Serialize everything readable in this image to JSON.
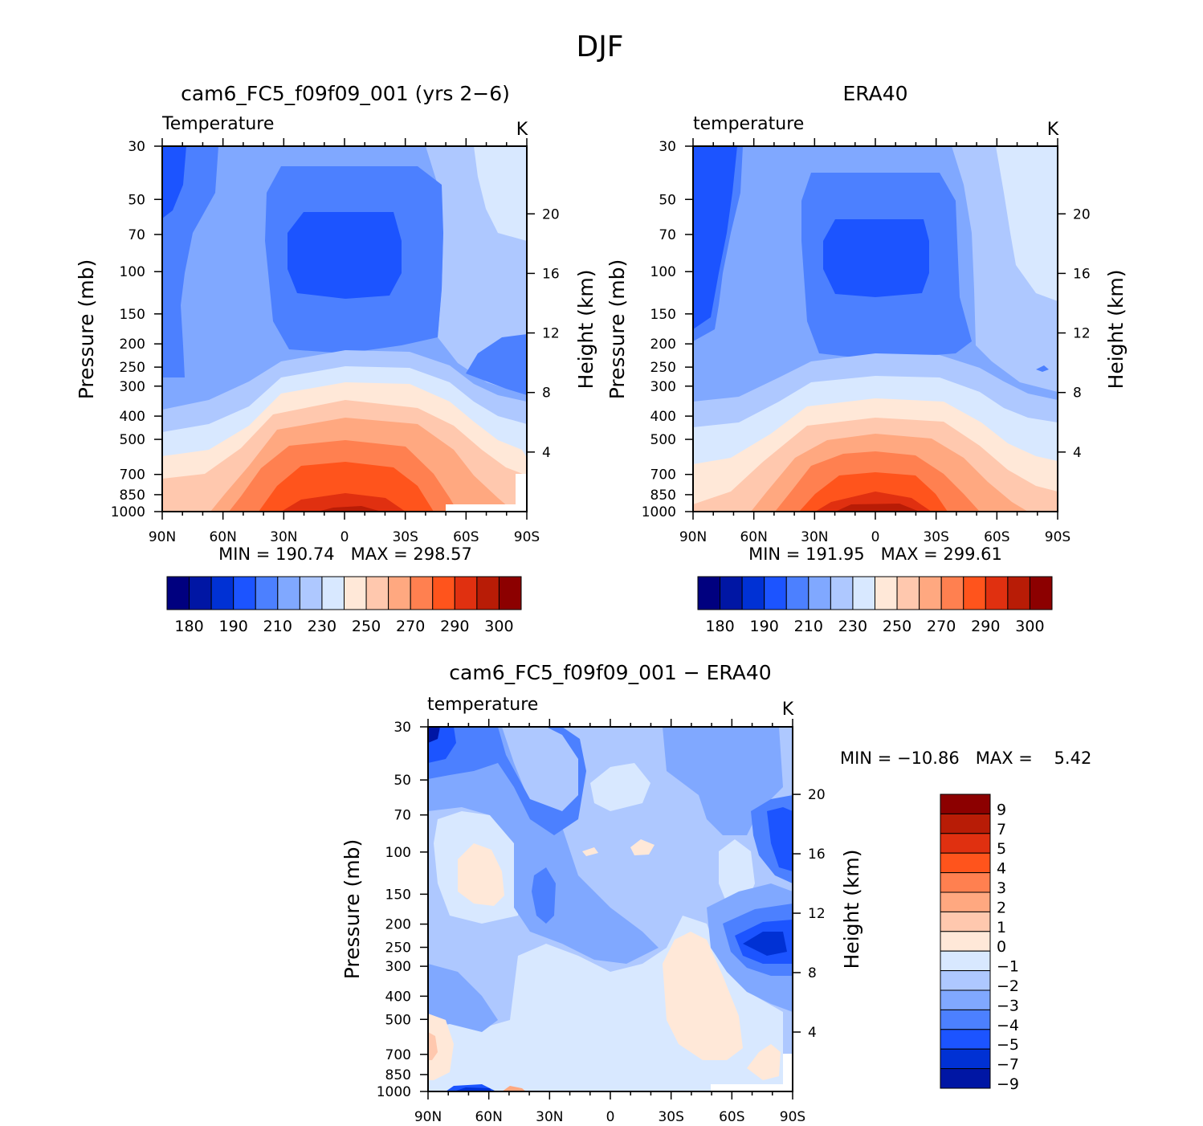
{
  "figure": {
    "title": "DJF"
  },
  "colors": {
    "abs_levels": [
      "#00007f",
      "#0016a4",
      "#0031d4",
      "#1c54ff",
      "#4c80ff",
      "#80a8ff",
      "#aec8ff",
      "#d8e8ff",
      "#ffe8d8",
      "#ffc8ae",
      "#ffa880",
      "#ff8050",
      "#ff541c",
      "#e03010",
      "#b81c06",
      "#8c0000"
    ],
    "diff_levels": [
      "#0016a4",
      "#0031d4",
      "#1c54ff",
      "#4c80ff",
      "#80a8ff",
      "#aec8ff",
      "#d8e8ff",
      "#ffe8d8",
      "#ffc8ae",
      "#ffa880",
      "#ff8050",
      "#ff541c",
      "#e03010",
      "#b81c06",
      "#8c0000"
    ]
  },
  "chart_data": [
    {
      "type": "heatmap",
      "id": "model",
      "title": "cam6_FC5_f09f09_001 (yrs 2−6)",
      "subtitle": "Temperature",
      "units": "K",
      "xlabel": "",
      "ylabel": "Pressure (mb)",
      "y2label": "Height (km)",
      "x_ticks": [
        "90N",
        "60N",
        "30N",
        "0",
        "30S",
        "60S",
        "90S"
      ],
      "y_ticks": [
        30,
        50,
        70,
        100,
        150,
        200,
        250,
        300,
        400,
        500,
        700,
        850,
        1000
      ],
      "y2_ticks": [
        20,
        16,
        12,
        8,
        4
      ],
      "stats": "MIN = 190.74   MAX = 298.57",
      "stats_min": 190.74,
      "stats_max": 298.57,
      "colorbar_labels": [
        "180",
        "190",
        "210",
        "230",
        "250",
        "270",
        "290",
        "300"
      ]
    },
    {
      "type": "heatmap",
      "id": "obs",
      "title": "ERA40",
      "subtitle": "temperature",
      "units": "K",
      "xlabel": "",
      "ylabel": "Pressure (mb)",
      "y2label": "Height (km)",
      "x_ticks": [
        "90N",
        "60N",
        "30N",
        "0",
        "30S",
        "60S",
        "90S"
      ],
      "y_ticks": [
        30,
        50,
        70,
        100,
        150,
        200,
        250,
        300,
        400,
        500,
        700,
        850,
        1000
      ],
      "y2_ticks": [
        20,
        16,
        12,
        8,
        4
      ],
      "stats": "MIN = 191.95   MAX = 299.61",
      "stats_min": 191.95,
      "stats_max": 299.61,
      "colorbar_labels": [
        "180",
        "190",
        "210",
        "230",
        "250",
        "270",
        "290",
        "300"
      ]
    },
    {
      "type": "heatmap",
      "id": "diff",
      "title": "cam6_FC5_f09f09_001 − ERA40",
      "subtitle": "temperature",
      "units": "K",
      "xlabel": "",
      "ylabel": "Pressure (mb)",
      "y2label": "Height (km)",
      "x_ticks": [
        "90N",
        "60N",
        "30N",
        "0",
        "30S",
        "60S",
        "90S"
      ],
      "y_ticks": [
        30,
        50,
        70,
        100,
        150,
        200,
        250,
        300,
        400,
        500,
        700,
        850,
        1000
      ],
      "y2_ticks": [
        20,
        16,
        12,
        8,
        4
      ],
      "stats": "MIN = −10.86   MAX =    5.42",
      "stats_min": -10.86,
      "stats_max": 5.42,
      "colorbar_labels": [
        "9",
        "7",
        "5",
        "4",
        "3",
        "2",
        "1",
        "0",
        "−1",
        "−2",
        "−3",
        "−4",
        "−5",
        "−7",
        "−9"
      ]
    }
  ]
}
